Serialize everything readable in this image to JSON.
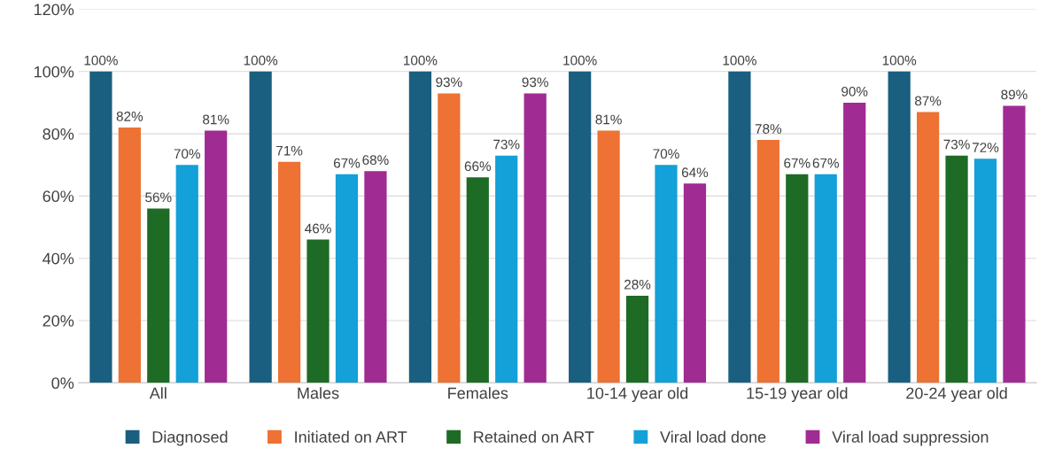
{
  "chart_data": {
    "type": "bar",
    "categories": [
      "All",
      "Males",
      "Females",
      "10-14 year old",
      "15-19 year old",
      "20-24 year old"
    ],
    "series": [
      {
        "name": "Diagnosed",
        "color": "#1a5e80",
        "values": [
          100,
          100,
          100,
          100,
          100,
          100
        ],
        "value_labels": [
          "100%",
          "100%",
          "100%",
          "100%",
          "100%",
          "100%"
        ]
      },
      {
        "name": "Initiated on ART",
        "color": "#ed7233",
        "values": [
          82,
          71,
          93,
          81,
          78,
          87
        ],
        "value_labels": [
          "82%",
          "71%",
          "93%",
          "81%",
          "78%",
          "87%"
        ]
      },
      {
        "name": "Retained on ART",
        "color": "#1e6b26",
        "values": [
          56,
          46,
          66,
          28,
          67,
          73
        ],
        "value_labels": [
          "56%",
          "46%",
          "66%",
          "28%",
          "67%",
          "73%"
        ]
      },
      {
        "name": "Viral load done",
        "color": "#14a0d8",
        "values": [
          70,
          67,
          73,
          70,
          67,
          72
        ],
        "value_labels": [
          "70%",
          "67%",
          "73%",
          "70%",
          "67%",
          "72%"
        ]
      },
      {
        "name": "Viral load suppression",
        "color": "#a02b93",
        "values": [
          81,
          68,
          93,
          64,
          90,
          89
        ],
        "value_labels": [
          "81%",
          "68%",
          "93%",
          "64%",
          "90%",
          "89%"
        ]
      }
    ],
    "ylim": [
      0,
      120
    ],
    "yticks": [
      {
        "value": 0,
        "label": "0%"
      },
      {
        "value": 20,
        "label": "20%"
      },
      {
        "value": 40,
        "label": "40%"
      },
      {
        "value": 60,
        "label": "60%"
      },
      {
        "value": 80,
        "label": "80%"
      },
      {
        "value": 100,
        "label": "100%"
      },
      {
        "value": 120,
        "label": "120%"
      }
    ],
    "grid": "y",
    "legend": "bottom"
  }
}
